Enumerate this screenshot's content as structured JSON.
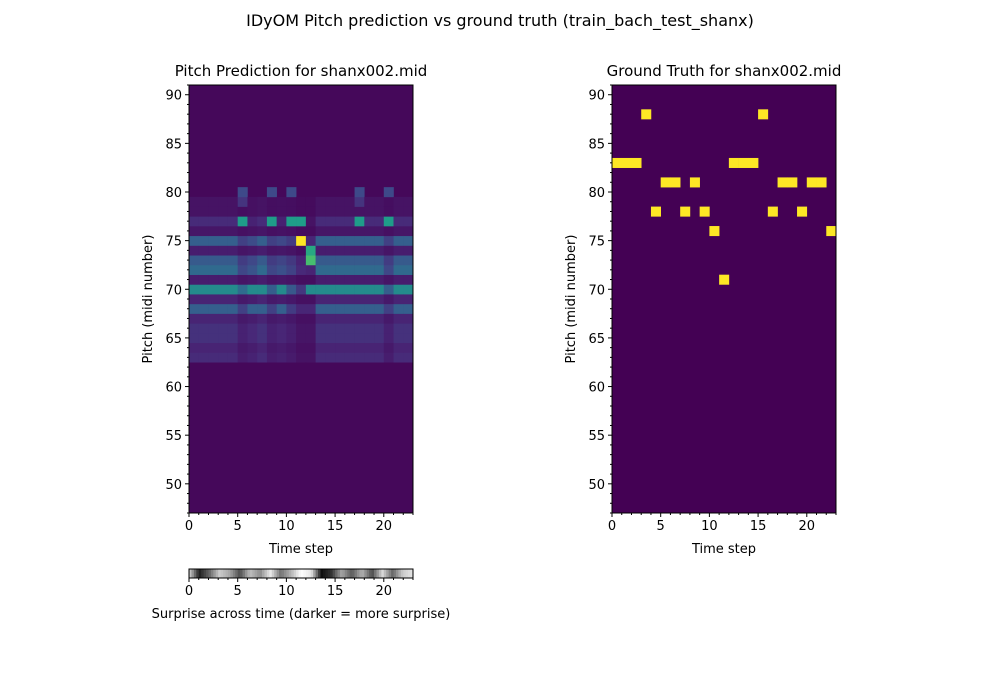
{
  "figure": {
    "suptitle": "IDyOM Pitch prediction vs ground truth (train_bach_test_shanx)"
  },
  "colors": {
    "viridis_low": "#440154",
    "viridis_high": "#fde725"
  },
  "chart_data": [
    {
      "type": "heatmap",
      "title": "Pitch Prediction for shanx002.mid",
      "xlabel": "Time step",
      "ylabel": "Pitch (midi number)",
      "xlim": [
        0,
        23
      ],
      "ylim": [
        47,
        91
      ],
      "xticks": [
        0,
        5,
        10,
        15,
        20
      ],
      "yticks": [
        50,
        55,
        60,
        65,
        70,
        75,
        80,
        85,
        90
      ],
      "colormap": "viridis",
      "value_range": [
        0,
        1
      ],
      "background_value": 0.02,
      "row_profiles": [
        {
          "pitch": 63,
          "value": 0.12
        },
        {
          "pitch": 64,
          "value": 0.1
        },
        {
          "pitch": 65,
          "value": 0.14
        },
        {
          "pitch": 66,
          "value": 0.14
        },
        {
          "pitch": 67,
          "value": 0.1
        },
        {
          "pitch": 68,
          "value": 0.3
        },
        {
          "pitch": 69,
          "value": 0.1
        },
        {
          "pitch": 70,
          "value": 0.48
        },
        {
          "pitch": 71,
          "value": 0.08
        },
        {
          "pitch": 72,
          "value": 0.34
        },
        {
          "pitch": 73,
          "value": 0.28
        },
        {
          "pitch": 74,
          "value": 0.08
        },
        {
          "pitch": 75,
          "value": 0.3
        },
        {
          "pitch": 76,
          "value": 0.06
        },
        {
          "pitch": 77,
          "value": 0.12
        },
        {
          "pitch": 78,
          "value": 0.05
        },
        {
          "pitch": 79,
          "value": 0.05
        }
      ],
      "dim_columns": [
        {
          "t": 0,
          "factor": 1.0
        },
        {
          "t": 1,
          "factor": 1.0
        },
        {
          "t": 2,
          "factor": 1.0
        },
        {
          "t": 3,
          "factor": 1.0
        },
        {
          "t": 4,
          "factor": 1.0
        },
        {
          "t": 5,
          "factor": 0.6
        },
        {
          "t": 6,
          "factor": 0.75
        },
        {
          "t": 8,
          "factor": 0.6
        },
        {
          "t": 9,
          "factor": 0.7
        },
        {
          "t": 10,
          "factor": 0.55
        },
        {
          "t": 11,
          "factor": 0.3
        },
        {
          "t": 12,
          "factor": 0.3
        },
        {
          "t": 20,
          "factor": 0.6
        }
      ],
      "highlight_cells": [
        {
          "t": 5,
          "pitch": 77,
          "value": 0.55
        },
        {
          "t": 8,
          "pitch": 77,
          "value": 0.55
        },
        {
          "t": 10,
          "pitch": 77,
          "value": 0.55
        },
        {
          "t": 11,
          "pitch": 77,
          "value": 0.55
        },
        {
          "t": 17,
          "pitch": 77,
          "value": 0.55
        },
        {
          "t": 20,
          "pitch": 77,
          "value": 0.55
        },
        {
          "t": 5,
          "pitch": 80,
          "value": 0.22
        },
        {
          "t": 8,
          "pitch": 80,
          "value": 0.22
        },
        {
          "t": 10,
          "pitch": 80,
          "value": 0.22
        },
        {
          "t": 17,
          "pitch": 80,
          "value": 0.22
        },
        {
          "t": 20,
          "pitch": 80,
          "value": 0.22
        },
        {
          "t": 5,
          "pitch": 79,
          "value": 0.15
        },
        {
          "t": 17,
          "pitch": 79,
          "value": 0.15
        },
        {
          "t": 11,
          "pitch": 75,
          "value": 1.0
        },
        {
          "t": 12,
          "pitch": 74,
          "value": 0.6
        },
        {
          "t": 12,
          "pitch": 73,
          "value": 0.7
        },
        {
          "t": 12,
          "pitch": 72,
          "value": 0.1
        },
        {
          "t": 5,
          "pitch": 70,
          "value": 0.35
        },
        {
          "t": 6,
          "pitch": 70,
          "value": 0.48
        },
        {
          "t": 7,
          "pitch": 70,
          "value": 0.48
        },
        {
          "t": 9,
          "pitch": 70,
          "value": 0.48
        },
        {
          "t": 12,
          "pitch": 70,
          "value": 0.48
        },
        {
          "t": 18,
          "pitch": 70,
          "value": 0.48
        },
        {
          "t": 21,
          "pitch": 70,
          "value": 0.48
        },
        {
          "t": 22,
          "pitch": 70,
          "value": 0.48
        },
        {
          "t": 6,
          "pitch": 68,
          "value": 0.3
        },
        {
          "t": 7,
          "pitch": 68,
          "value": 0.3
        },
        {
          "t": 9,
          "pitch": 68,
          "value": 0.3
        },
        {
          "t": 18,
          "pitch": 68,
          "value": 0.3
        },
        {
          "t": 19,
          "pitch": 68,
          "value": 0.3
        },
        {
          "t": 21,
          "pitch": 68,
          "value": 0.3
        },
        {
          "t": 22,
          "pitch": 68,
          "value": 0.3
        }
      ]
    },
    {
      "type": "heatmap",
      "title": "Ground Truth for shanx002.mid",
      "xlabel": "Time step",
      "ylabel": "Pitch (midi number)",
      "xlim": [
        0,
        23
      ],
      "ylim": [
        47,
        91
      ],
      "xticks": [
        0,
        5,
        10,
        15,
        20
      ],
      "yticks": [
        50,
        55,
        60,
        65,
        70,
        75,
        80,
        85,
        90
      ],
      "colormap": "viridis",
      "value_range": [
        0,
        1
      ],
      "background_value": 0,
      "notes": [
        {
          "t": 0,
          "pitch": 83
        },
        {
          "t": 1,
          "pitch": 83
        },
        {
          "t": 2,
          "pitch": 83
        },
        {
          "t": 3,
          "pitch": 88
        },
        {
          "t": 4,
          "pitch": 78
        },
        {
          "t": 5,
          "pitch": 81
        },
        {
          "t": 6,
          "pitch": 81
        },
        {
          "t": 7,
          "pitch": 78
        },
        {
          "t": 8,
          "pitch": 81
        },
        {
          "t": 9,
          "pitch": 78
        },
        {
          "t": 10,
          "pitch": 76
        },
        {
          "t": 11,
          "pitch": 71
        },
        {
          "t": 12,
          "pitch": 83
        },
        {
          "t": 13,
          "pitch": 83
        },
        {
          "t": 14,
          "pitch": 83
        },
        {
          "t": 15,
          "pitch": 88
        },
        {
          "t": 16,
          "pitch": 78
        },
        {
          "t": 17,
          "pitch": 81
        },
        {
          "t": 18,
          "pitch": 81
        },
        {
          "t": 19,
          "pitch": 78
        },
        {
          "t": 20,
          "pitch": 81
        },
        {
          "t": 21,
          "pitch": 81
        },
        {
          "t": 22,
          "pitch": 76
        }
      ]
    },
    {
      "type": "heatmap",
      "title": "",
      "xlabel": "Surprise across time (darker = more surprise)",
      "xlim": [
        0,
        23
      ],
      "xticks": [
        0,
        5,
        10,
        15,
        20
      ],
      "colormap": "gray",
      "note": "gray level: 0 = black (more surprise), 1 = white",
      "values": [
        0.85,
        0.12,
        0.4,
        0.8,
        0.65,
        0.3,
        0.75,
        0.55,
        0.92,
        0.45,
        0.7,
        1.0,
        0.9,
        0.05,
        0.2,
        0.65,
        0.35,
        0.7,
        0.3,
        0.85,
        0.4,
        0.8,
        0.9
      ]
    }
  ]
}
